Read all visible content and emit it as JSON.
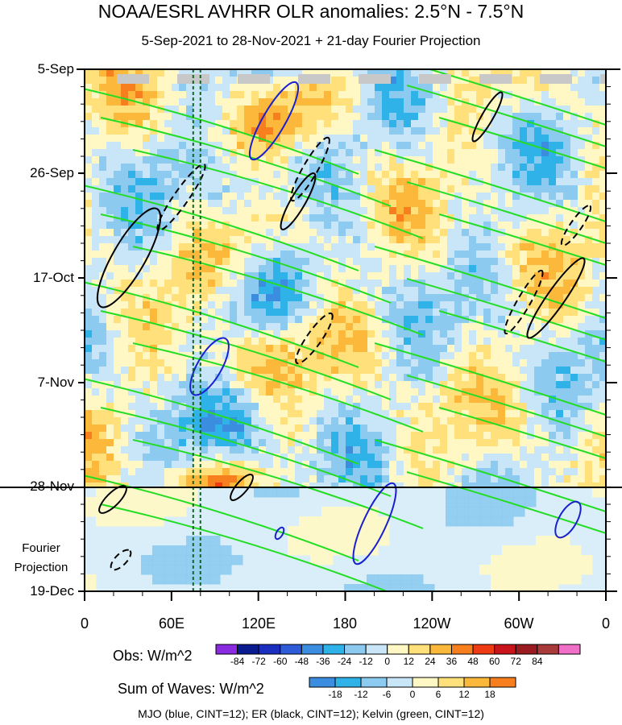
{
  "chart_data": {
    "type": "heatmap",
    "title": "NOAA/ESRL AVHRR OLR anomalies: 2.5°N - 7.5°N",
    "subtitle": "5-Sep-2021 to 28-Nov-2021 + 21-day Fourier Projection",
    "y_ticks": [
      "5-Sep",
      "26-Sep",
      "17-Oct",
      "7-Nov",
      "28-Nov",
      "19-Dec"
    ],
    "projection_label": [
      "Fourier",
      "Projection"
    ],
    "x_ticks": [
      "0",
      "60E",
      "120E",
      "180",
      "120W",
      "60W",
      "0"
    ],
    "x_range_deg_east": [
      0,
      360
    ],
    "obs_colorbar": {
      "label": "Obs: W/m^2",
      "ticks": [
        "-84",
        "-72",
        "-60",
        "-48",
        "-36",
        "-24",
        "-12",
        "0",
        "12",
        "24",
        "36",
        "48",
        "60",
        "72",
        "84"
      ],
      "colors": [
        "#8a2be2",
        "#0a1a8f",
        "#1a2fbf",
        "#2e5bd8",
        "#3b8de0",
        "#2fb2e8",
        "#8ccaf0",
        "#c8e6f8",
        "#fff8c4",
        "#ffe07a",
        "#fcb83a",
        "#f77f1e",
        "#ee3b14",
        "#c8141a",
        "#9a1c20",
        "#a83a3a",
        "#f070c8"
      ]
    },
    "waves_colorbar": {
      "label": "Sum of Waves: W/m^2",
      "ticks": [
        "-18",
        "-12",
        "-6",
        "0",
        "6",
        "12",
        "18"
      ],
      "colors": [
        "#3b8de0",
        "#2fb2e8",
        "#8ccaf0",
        "#c8e6f8",
        "#fff8c4",
        "#ffe07a",
        "#fcb83a",
        "#f77f1e"
      ]
    },
    "footer": "MJO (blue, CINT=12); ER (black, CINT=12); Kelvin (green, CINT=12)",
    "overlays": [
      {
        "name": "MJO",
        "color": "blue"
      },
      {
        "name": "ER",
        "color": "black"
      },
      {
        "name": "Kelvin",
        "color": "green"
      }
    ],
    "reference_lines_deg_east": [
      75,
      80
    ]
  }
}
